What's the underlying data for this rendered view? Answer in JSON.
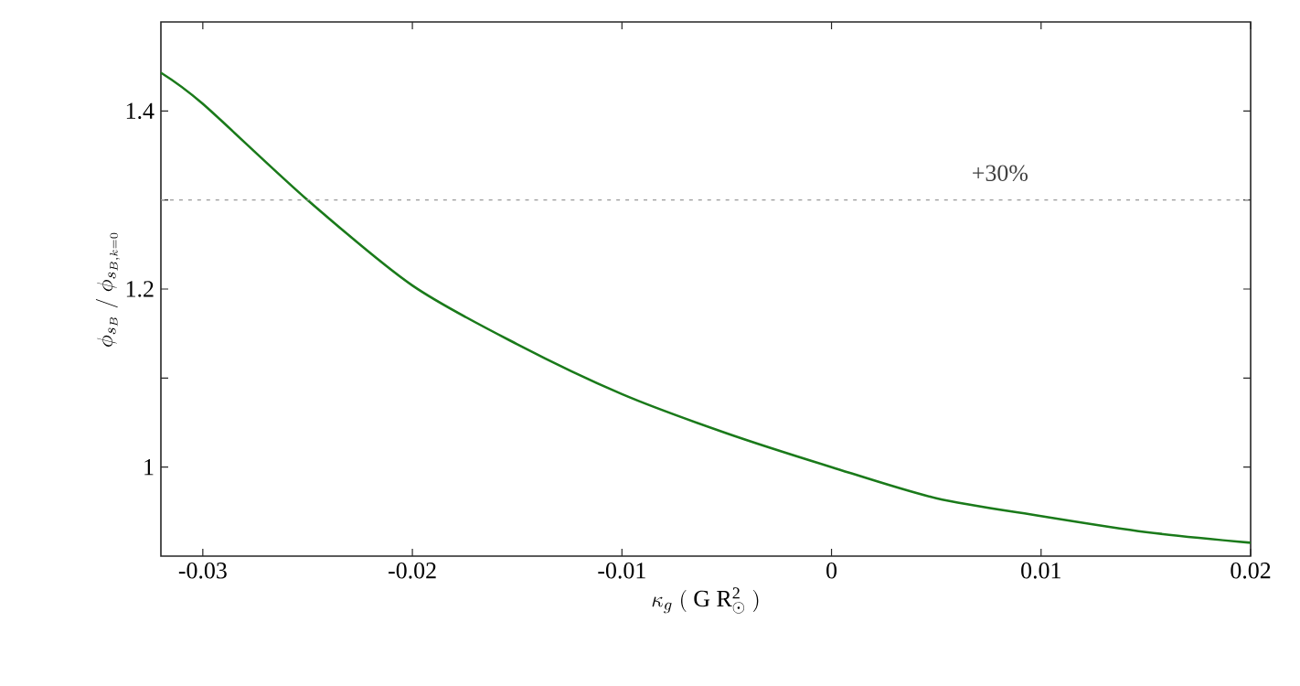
{
  "chart_data": {
    "type": "line",
    "xlabel": "\\kappa_g\\ (\\ \\mathrm{G\\ R_\\odot^2}\\ )",
    "ylabel": "\\phi_{s_B}\\ /\\ \\phi_{s_{B,k=0}}",
    "x": [
      -0.032,
      -0.03,
      -0.025,
      -0.02,
      -0.015,
      -0.01,
      -0.005,
      0,
      0.005,
      0.01,
      0.015,
      0.02
    ],
    "series": [
      {
        "color": "#1a7a1a",
        "values": [
          1.443,
          1.408,
          1.3,
          1.204,
          1.138,
          1.082,
          1.038,
          1.0,
          0.965,
          0.945,
          0.927,
          0.915
        ]
      }
    ],
    "xlim": [
      -0.032,
      0.02
    ],
    "ylim": [
      0.9,
      1.5
    ],
    "xticks": [
      -0.03,
      -0.02,
      -0.01,
      0,
      0.01,
      0.02
    ],
    "yticks": [
      {
        "value": 1,
        "label": "1"
      },
      {
        "value": 1.1,
        "label": null
      },
      {
        "value": 1.2,
        "label": "1.2"
      },
      {
        "value": 1.3,
        "label": null
      },
      {
        "value": 1.4,
        "label": "1.4"
      }
    ],
    "ref_lines": [
      {
        "axis": "y",
        "value": 1.3,
        "color": "#999999",
        "line_style": "dashed"
      }
    ],
    "annotations": [
      "+30%"
    ],
    "marker": "none",
    "line_style": "solid"
  }
}
